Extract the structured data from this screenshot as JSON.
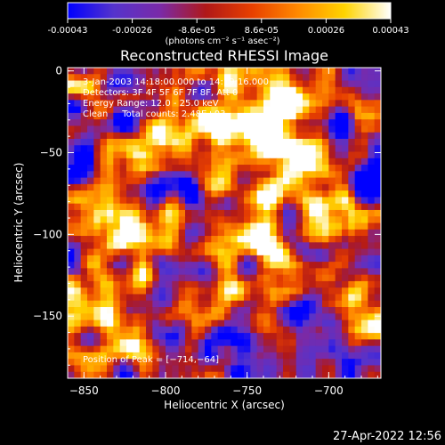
{
  "colorbar": {
    "ticks": [
      "-0.00043",
      "-0.00026",
      "-8.6e-05",
      "8.6e-05",
      "0.00026",
      "0.00043"
    ],
    "units": "(photons cm⁻² s⁻¹ asec⁻²)",
    "colors": [
      "#0000ff",
      "#5533cc",
      "#7a2aa8",
      "#b01818",
      "#e84000",
      "#ff8a00",
      "#ffd400",
      "#ffffff"
    ]
  },
  "chart_data": {
    "type": "heatmap",
    "title": "Reconstructed RHESSI Image",
    "xlabel": "Heliocentric X (arcsec)",
    "ylabel": "Heliocentric Y (arcsec)",
    "xlim": [
      -860,
      -668
    ],
    "ylim": [
      -188,
      2
    ],
    "x_ticks": [
      {
        "value": -850,
        "label": "−850"
      },
      {
        "value": -800,
        "label": "−800"
      },
      {
        "value": -750,
        "label": "−750"
      },
      {
        "value": -700,
        "label": "−700"
      }
    ],
    "y_ticks": [
      {
        "value": 0,
        "label": "0"
      },
      {
        "value": -50,
        "label": "−50"
      },
      {
        "value": -100,
        "label": "−100"
      },
      {
        "value": -150,
        "label": "−150"
      }
    ],
    "colorbar_range": [
      -0.00043,
      0.00043
    ],
    "annotations": [
      "3-Jan-2003 14:18:00.000 to 14:19:16.000",
      "Detectors: 3F 4F 5F 6F 7F 8F, Att 0",
      "Energy Range: 12.0 - 25.0 keV",
      "Clean     Total counts: 2.48E+03"
    ],
    "peak_label": "Position of Peak = [−714,−64]",
    "peak": {
      "x": -714,
      "y": -64
    }
  },
  "timestamp": "27-Apr-2022 12:56"
}
